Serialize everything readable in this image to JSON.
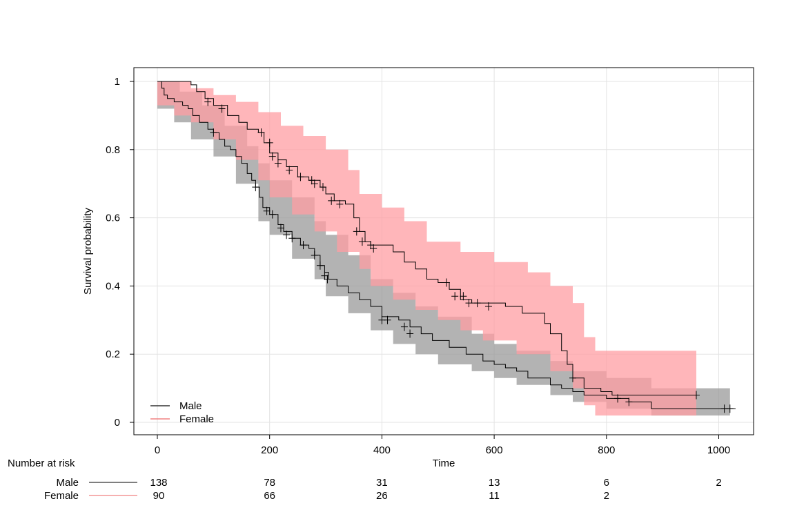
{
  "chart_data": {
    "type": "line",
    "subtype": "kaplan-meier-survival",
    "xlabel": "Time",
    "ylabel": "Survival probability",
    "xlim": [
      0,
      1040
    ],
    "ylim": [
      0,
      1
    ],
    "x_ticks": [
      0,
      200,
      400,
      600,
      800,
      1000
    ],
    "y_ticks": [
      0,
      0.2,
      0.4,
      0.6,
      0.8,
      1
    ],
    "y_tick_labels": [
      "0",
      "0.2",
      "0.4",
      "0.6",
      "0.8",
      "1"
    ],
    "grid": true,
    "legend_position": "bottom-left",
    "confidence_bands": true,
    "series": [
      {
        "name": "Male",
        "color": "#333333",
        "band_color": "#9a9a9a",
        "steps": [
          [
            0,
            1.0
          ],
          [
            8,
            0.98
          ],
          [
            12,
            0.96
          ],
          [
            18,
            0.95
          ],
          [
            30,
            0.94
          ],
          [
            45,
            0.93
          ],
          [
            55,
            0.92
          ],
          [
            63,
            0.9
          ],
          [
            75,
            0.88
          ],
          [
            90,
            0.86
          ],
          [
            100,
            0.85
          ],
          [
            110,
            0.83
          ],
          [
            120,
            0.81
          ],
          [
            130,
            0.8
          ],
          [
            140,
            0.78
          ],
          [
            150,
            0.76
          ],
          [
            160,
            0.73
          ],
          [
            168,
            0.71
          ],
          [
            175,
            0.69
          ],
          [
            182,
            0.66
          ],
          [
            188,
            0.63
          ],
          [
            200,
            0.61
          ],
          [
            215,
            0.58
          ],
          [
            225,
            0.56
          ],
          [
            240,
            0.54
          ],
          [
            255,
            0.52
          ],
          [
            270,
            0.51
          ],
          [
            280,
            0.49
          ],
          [
            290,
            0.46
          ],
          [
            298,
            0.44
          ],
          [
            305,
            0.42
          ],
          [
            320,
            0.4
          ],
          [
            340,
            0.38
          ],
          [
            360,
            0.36
          ],
          [
            380,
            0.34
          ],
          [
            400,
            0.31
          ],
          [
            430,
            0.3
          ],
          [
            450,
            0.28
          ],
          [
            470,
            0.26
          ],
          [
            490,
            0.24
          ],
          [
            520,
            0.22
          ],
          [
            550,
            0.2
          ],
          [
            580,
            0.18
          ],
          [
            600,
            0.17
          ],
          [
            620,
            0.16
          ],
          [
            640,
            0.15
          ],
          [
            660,
            0.13
          ],
          [
            700,
            0.11
          ],
          [
            720,
            0.1
          ],
          [
            740,
            0.09
          ],
          [
            760,
            0.08
          ],
          [
            800,
            0.07
          ],
          [
            840,
            0.06
          ],
          [
            880,
            0.04
          ],
          [
            1030,
            0.04
          ]
        ],
        "lower": [
          [
            0,
            0.92
          ],
          [
            30,
            0.88
          ],
          [
            60,
            0.83
          ],
          [
            100,
            0.78
          ],
          [
            140,
            0.7
          ],
          [
            180,
            0.59
          ],
          [
            200,
            0.55
          ],
          [
            240,
            0.48
          ],
          [
            280,
            0.42
          ],
          [
            300,
            0.37
          ],
          [
            340,
            0.32
          ],
          [
            380,
            0.27
          ],
          [
            420,
            0.23
          ],
          [
            460,
            0.2
          ],
          [
            500,
            0.17
          ],
          [
            560,
            0.15
          ],
          [
            600,
            0.13
          ],
          [
            640,
            0.11
          ],
          [
            700,
            0.08
          ],
          [
            740,
            0.06
          ],
          [
            800,
            0.04
          ],
          [
            880,
            0.02
          ],
          [
            1020,
            0.01
          ]
        ],
        "upper": [
          [
            0,
            1.0
          ],
          [
            40,
            0.97
          ],
          [
            80,
            0.93
          ],
          [
            120,
            0.87
          ],
          [
            160,
            0.81
          ],
          [
            180,
            0.76
          ],
          [
            200,
            0.71
          ],
          [
            240,
            0.66
          ],
          [
            280,
            0.59
          ],
          [
            300,
            0.55
          ],
          [
            340,
            0.49
          ],
          [
            380,
            0.42
          ],
          [
            420,
            0.38
          ],
          [
            460,
            0.34
          ],
          [
            500,
            0.31
          ],
          [
            560,
            0.26
          ],
          [
            600,
            0.23
          ],
          [
            640,
            0.21
          ],
          [
            700,
            0.18
          ],
          [
            740,
            0.15
          ],
          [
            800,
            0.13
          ],
          [
            880,
            0.1
          ],
          [
            1020,
            0.09
          ]
        ],
        "censored": [
          [
            100,
            0.85
          ],
          [
            175,
            0.69
          ],
          [
            195,
            0.62
          ],
          [
            205,
            0.61
          ],
          [
            220,
            0.57
          ],
          [
            230,
            0.55
          ],
          [
            240,
            0.54
          ],
          [
            260,
            0.52
          ],
          [
            280,
            0.49
          ],
          [
            290,
            0.46
          ],
          [
            298,
            0.43
          ],
          [
            303,
            0.42
          ],
          [
            400,
            0.3
          ],
          [
            410,
            0.3
          ],
          [
            440,
            0.28
          ],
          [
            450,
            0.26
          ],
          [
            820,
            0.07
          ],
          [
            840,
            0.06
          ],
          [
            1010,
            0.04
          ],
          [
            1020,
            0.04
          ]
        ]
      },
      {
        "name": "Female",
        "color": "#f08080",
        "band_color": "#ff9ea3",
        "steps": [
          [
            0,
            1.0
          ],
          [
            60,
            0.99
          ],
          [
            70,
            0.97
          ],
          [
            85,
            0.95
          ],
          [
            100,
            0.93
          ],
          [
            125,
            0.9
          ],
          [
            145,
            0.88
          ],
          [
            160,
            0.86
          ],
          [
            180,
            0.85
          ],
          [
            190,
            0.82
          ],
          [
            200,
            0.79
          ],
          [
            215,
            0.77
          ],
          [
            230,
            0.75
          ],
          [
            250,
            0.72
          ],
          [
            270,
            0.71
          ],
          [
            290,
            0.69
          ],
          [
            300,
            0.67
          ],
          [
            315,
            0.65
          ],
          [
            335,
            0.64
          ],
          [
            350,
            0.6
          ],
          [
            360,
            0.56
          ],
          [
            370,
            0.53
          ],
          [
            380,
            0.52
          ],
          [
            420,
            0.5
          ],
          [
            440,
            0.47
          ],
          [
            460,
            0.45
          ],
          [
            480,
            0.42
          ],
          [
            500,
            0.41
          ],
          [
            520,
            0.39
          ],
          [
            540,
            0.36
          ],
          [
            560,
            0.35
          ],
          [
            620,
            0.34
          ],
          [
            650,
            0.32
          ],
          [
            690,
            0.29
          ],
          [
            700,
            0.26
          ],
          [
            720,
            0.21
          ],
          [
            730,
            0.17
          ],
          [
            740,
            0.13
          ],
          [
            760,
            0.1
          ],
          [
            790,
            0.09
          ],
          [
            810,
            0.08
          ],
          [
            960,
            0.08
          ]
        ],
        "lower": [
          [
            0,
            0.93
          ],
          [
            30,
            0.9
          ],
          [
            60,
            0.88
          ],
          [
            100,
            0.83
          ],
          [
            140,
            0.77
          ],
          [
            180,
            0.71
          ],
          [
            200,
            0.66
          ],
          [
            240,
            0.61
          ],
          [
            280,
            0.56
          ],
          [
            320,
            0.5
          ],
          [
            360,
            0.45
          ],
          [
            380,
            0.4
          ],
          [
            420,
            0.36
          ],
          [
            460,
            0.33
          ],
          [
            500,
            0.3
          ],
          [
            540,
            0.27
          ],
          [
            580,
            0.24
          ],
          [
            640,
            0.2
          ],
          [
            700,
            0.15
          ],
          [
            740,
            0.1
          ],
          [
            760,
            0.05
          ],
          [
            780,
            0.02
          ],
          [
            960,
            0.02
          ]
        ],
        "upper": [
          [
            0,
            1.0
          ],
          [
            60,
            0.98
          ],
          [
            100,
            0.96
          ],
          [
            140,
            0.94
          ],
          [
            180,
            0.91
          ],
          [
            220,
            0.87
          ],
          [
            260,
            0.84
          ],
          [
            300,
            0.8
          ],
          [
            340,
            0.74
          ],
          [
            360,
            0.67
          ],
          [
            400,
            0.63
          ],
          [
            440,
            0.59
          ],
          [
            480,
            0.53
          ],
          [
            540,
            0.5
          ],
          [
            600,
            0.47
          ],
          [
            660,
            0.44
          ],
          [
            700,
            0.4
          ],
          [
            740,
            0.35
          ],
          [
            760,
            0.25
          ],
          [
            780,
            0.21
          ],
          [
            960,
            0.21
          ]
        ],
        "censored": [
          [
            90,
            0.94
          ],
          [
            115,
            0.92
          ],
          [
            185,
            0.85
          ],
          [
            200,
            0.82
          ],
          [
            205,
            0.78
          ],
          [
            215,
            0.76
          ],
          [
            235,
            0.74
          ],
          [
            255,
            0.72
          ],
          [
            275,
            0.71
          ],
          [
            280,
            0.7
          ],
          [
            295,
            0.69
          ],
          [
            310,
            0.65
          ],
          [
            325,
            0.64
          ],
          [
            355,
            0.56
          ],
          [
            365,
            0.53
          ],
          [
            380,
            0.52
          ],
          [
            385,
            0.51
          ],
          [
            515,
            0.41
          ],
          [
            530,
            0.37
          ],
          [
            545,
            0.37
          ],
          [
            555,
            0.35
          ],
          [
            570,
            0.35
          ],
          [
            590,
            0.34
          ],
          [
            740,
            0.13
          ],
          [
            960,
            0.08
          ]
        ]
      }
    ],
    "risk_table": {
      "title": "Number at risk",
      "times": [
        0,
        200,
        400,
        600,
        800,
        1000
      ],
      "rows": [
        {
          "name": "Male",
          "color": "#333333",
          "counts": [
            "138",
            "78",
            "31",
            "13",
            "6",
            "2"
          ]
        },
        {
          "name": "Female",
          "color": "#f08080",
          "counts": [
            "90",
            "66",
            "26",
            "11",
            "2",
            ""
          ]
        }
      ]
    }
  }
}
